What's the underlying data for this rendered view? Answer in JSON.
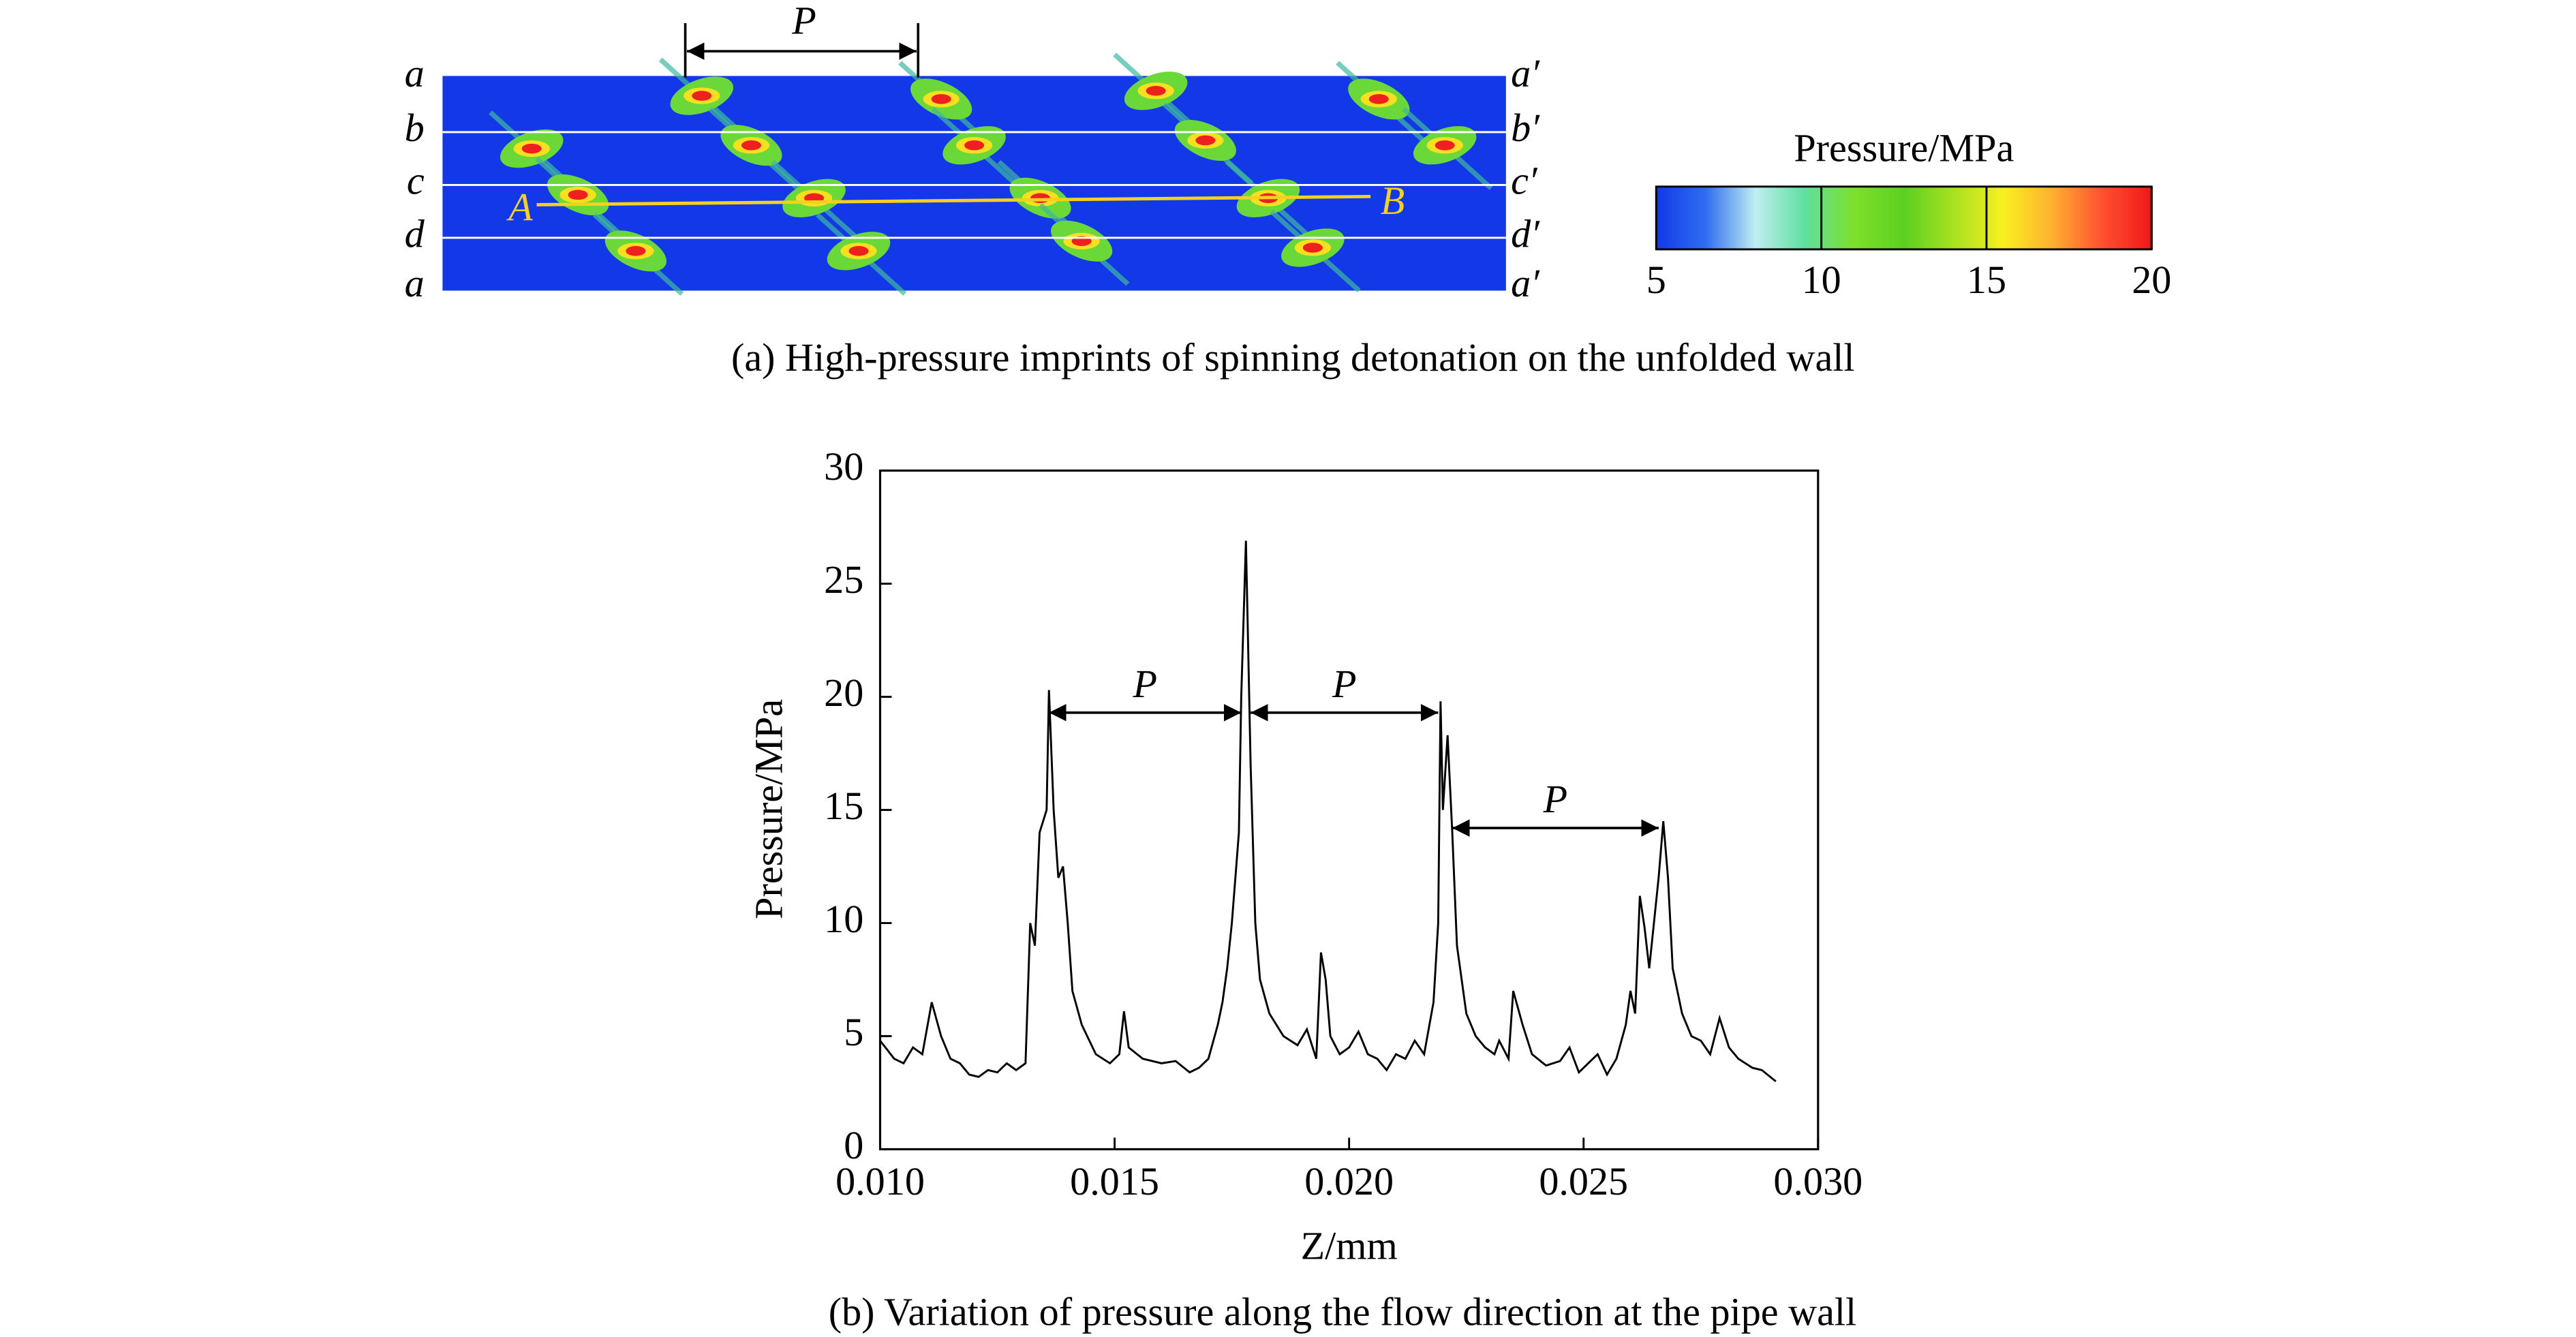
{
  "chart_data": [
    {
      "type": "heatmap",
      "caption": "(a) High-pressure imprints of spinning detonation on the unfolded wall",
      "period_label": "P",
      "row_labels_left": [
        "a",
        "b",
        "c",
        "d",
        "a"
      ],
      "row_labels_right": [
        "a′",
        "b′",
        "c′",
        "d′",
        "a′"
      ],
      "line_labels": [
        "A",
        "B"
      ],
      "colorbar": {
        "title": "Pressure/MPa",
        "lim": [
          5,
          20
        ],
        "ticks": [
          5,
          10,
          15,
          20
        ],
        "colors": [
          "#1238e8",
          "#2f6df0",
          "#bfeef0",
          "#5ee0a0",
          "#7ee02a",
          "#5cd020",
          "#a8e020",
          "#f8f020",
          "#ffb030",
          "#ff5030",
          "#f01818"
        ]
      }
    },
    {
      "type": "line",
      "caption": "(b) Variation of pressure along the flow direction at the pipe wall",
      "xlabel": "Z/mm",
      "ylabel": "Pressure/MPa",
      "color": "#000000",
      "xlim": [
        0.01,
        0.03
      ],
      "xticks": [
        {
          "value": 0.01,
          "label": "0.010"
        },
        {
          "value": 0.015,
          "label": "0.015"
        },
        {
          "value": 0.02,
          "label": "0.020"
        },
        {
          "value": 0.025,
          "label": "0.025"
        },
        {
          "value": 0.03,
          "label": "0.030"
        }
      ],
      "ylim": [
        0,
        30
      ],
      "yticks": [
        0,
        5,
        10,
        15,
        20,
        25,
        30
      ],
      "x": [
        0.01,
        0.0103,
        0.0105,
        0.0107,
        0.0109,
        0.0111,
        0.0113,
        0.0115,
        0.0117,
        0.0119,
        0.0121,
        0.0123,
        0.0125,
        0.0127,
        0.0129,
        0.0131,
        0.0132,
        0.0133,
        0.0134,
        0.01355,
        0.0136,
        0.0137,
        0.0138,
        0.0139,
        0.014,
        0.0141,
        0.0143,
        0.0146,
        0.0149,
        0.0151,
        0.0152,
        0.0153,
        0.0156,
        0.016,
        0.0163,
        0.0166,
        0.0168,
        0.017,
        0.0172,
        0.0173,
        0.0174,
        0.0175,
        0.01765,
        0.0177,
        0.0178,
        0.0179,
        0.018,
        0.0181,
        0.0183,
        0.0186,
        0.0189,
        0.0191,
        0.0193,
        0.0194,
        0.0195,
        0.0196,
        0.0198,
        0.02,
        0.0202,
        0.0204,
        0.0206,
        0.0208,
        0.021,
        0.0212,
        0.0214,
        0.0216,
        0.0218,
        0.0219,
        0.02195,
        0.022,
        0.0221,
        0.0222,
        0.0223,
        0.0225,
        0.0227,
        0.0229,
        0.0231,
        0.0232,
        0.0234,
        0.0235,
        0.0237,
        0.0239,
        0.0242,
        0.0245,
        0.0247,
        0.0249,
        0.0251,
        0.0253,
        0.0255,
        0.0257,
        0.0259,
        0.026,
        0.0261,
        0.0262,
        0.0263,
        0.0264,
        0.0266,
        0.0267,
        0.0268,
        0.0269,
        0.0271,
        0.0273,
        0.0275,
        0.0277,
        0.0279,
        0.0281,
        0.0283,
        0.0286,
        0.0288,
        0.0291
      ],
      "values": [
        4.8,
        4,
        3.8,
        4.5,
        4.2,
        6.5,
        5,
        4,
        3.8,
        3.3,
        3.2,
        3.5,
        3.4,
        3.8,
        3.5,
        3.8,
        10,
        9,
        14,
        15,
        20.3,
        15,
        12,
        12.5,
        10,
        7,
        5.5,
        4.2,
        3.8,
        4.2,
        6.1,
        4.5,
        4,
        3.8,
        3.9,
        3.4,
        3.6,
        4,
        5.5,
        6.5,
        8,
        10,
        14,
        20,
        26.9,
        17,
        10,
        7.5,
        6,
        5,
        4.6,
        5.3,
        4,
        8.7,
        7.5,
        5,
        4.2,
        4.5,
        5.2,
        4.2,
        4,
        3.5,
        4.2,
        4,
        4.8,
        4.2,
        6.5,
        10,
        19.8,
        15,
        18.3,
        14,
        9,
        6,
        5,
        4.5,
        4.2,
        4.8,
        4,
        7,
        5.5,
        4.2,
        3.7,
        3.9,
        4.5,
        3.4,
        3.8,
        4.2,
        3.3,
        4,
        5.5,
        7,
        6,
        11.2,
        9.8,
        8,
        12,
        14.5,
        12,
        8,
        6,
        5,
        4.8,
        4.2,
        5.8,
        4.5,
        4,
        3.6,
        3.5,
        3
      ],
      "annotations": [
        {
          "text": "P",
          "x": [
            0.0136,
            0.0177
          ],
          "y": 19.3
        },
        {
          "text": "P",
          "x": [
            0.0179,
            0.0219
          ],
          "y": 19.3
        },
        {
          "text": "P",
          "x": [
            0.0222,
            0.0266
          ],
          "y": 14.2
        }
      ]
    }
  ]
}
